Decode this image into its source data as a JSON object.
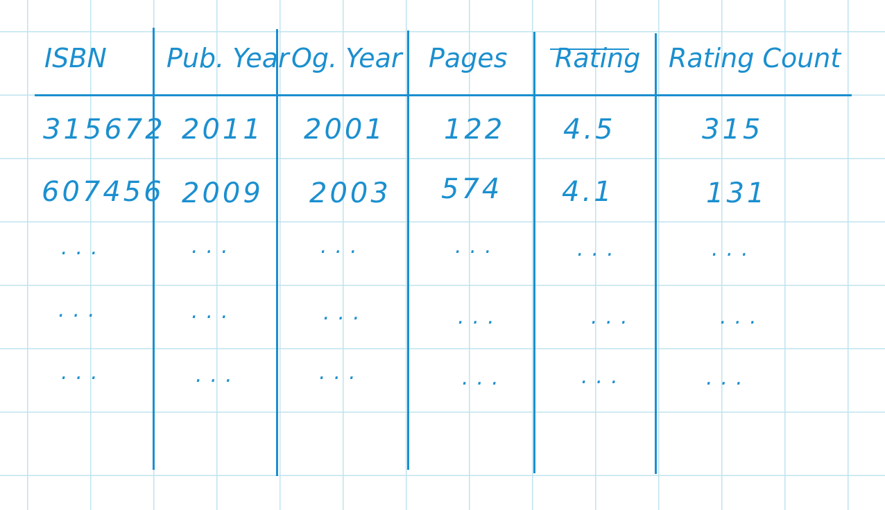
{
  "table": {
    "headers": [
      "ISBN",
      "Pub. Year",
      "Og. Year",
      "Pages",
      "Rating",
      "Rating Count"
    ],
    "rows": [
      [
        "315672",
        "2011",
        "2001",
        "122",
        "4.5",
        "315"
      ],
      [
        "607456",
        "2009",
        "2003",
        "574",
        "4.1",
        "131"
      ],
      [
        "...",
        "...",
        "...",
        "...",
        "...",
        "..."
      ],
      [
        "...",
        "...",
        "...",
        "...",
        "...",
        "..."
      ],
      [
        "...",
        "...",
        "...",
        "...",
        "...",
        "..."
      ]
    ]
  },
  "colors": {
    "ink": "#1b8fcf",
    "grid": "#bfe3ef",
    "paper": "#ffffff"
  }
}
